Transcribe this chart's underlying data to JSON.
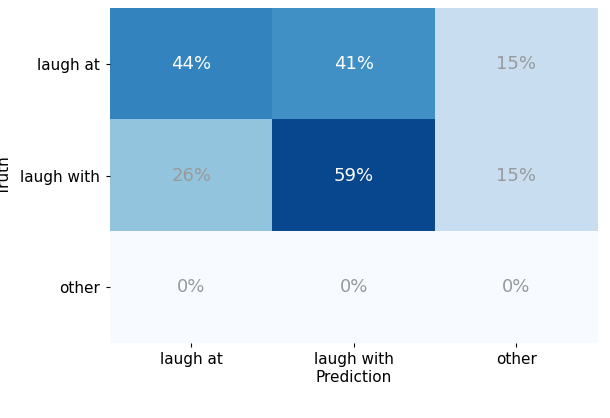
{
  "matrix": [
    [
      44,
      41,
      15
    ],
    [
      26,
      59,
      15
    ],
    [
      0,
      0,
      0
    ]
  ],
  "labels": [
    "laugh at",
    "laugh with",
    "other"
  ],
  "xlabel": "Prediction",
  "ylabel": "Truth",
  "cmap": "Blues",
  "vmin": 0,
  "vmax": 65,
  "text_threshold_white": 30,
  "text_color_dark": "#999999",
  "text_color_light": "white",
  "figsize": [
    6.1,
    4.18
  ],
  "dpi": 100,
  "fontsize_annot": 13,
  "fontsize_tick": 11,
  "fontsize_label": 11
}
